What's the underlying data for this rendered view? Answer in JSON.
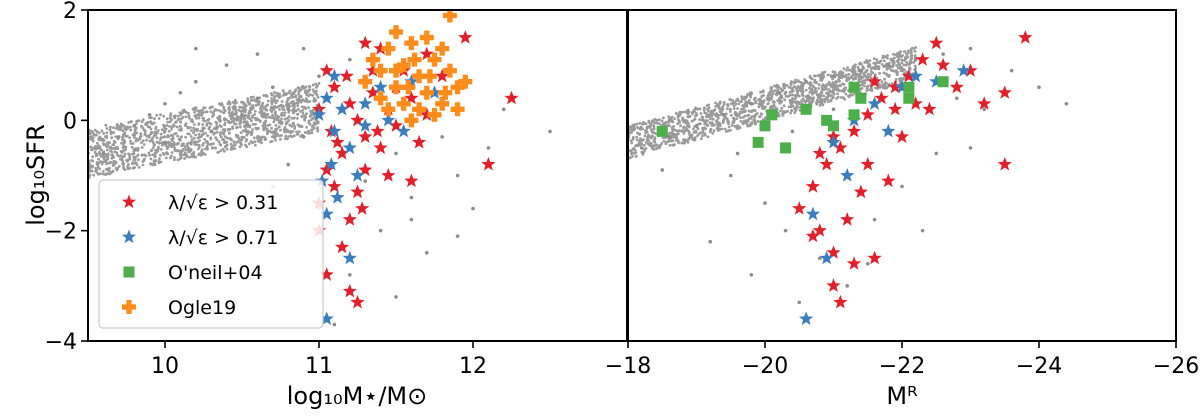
{
  "chart_data": [
    {
      "type": "scatter",
      "panel": "left",
      "xlabel": "log₁₀M⋆/M⊙",
      "ylabel": "log₁₀SFR",
      "xlim": [
        9.5,
        13.0
      ],
      "ylim": [
        -4,
        2
      ],
      "xticks": [
        10,
        11,
        12
      ],
      "xtick_labels": [
        "10",
        "11",
        "12"
      ],
      "yticks": [
        2,
        0,
        -2,
        -4
      ],
      "ytick_labels": [
        "2",
        "0",
        "−2",
        "−4"
      ],
      "legend": {
        "placement": "lower-left",
        "entries": [
          {
            "label": "λ/√ε > 0.31",
            "marker": "star",
            "color": "#e3202a"
          },
          {
            "label": "λ/√ε > 0.71",
            "marker": "star",
            "color": "#3b7ec0"
          },
          {
            "label": "O'neil+04",
            "marker": "square",
            "color": "#4daf4a"
          },
          {
            "label": "Ogle19",
            "marker": "plus",
            "color": "#ff8c1a"
          }
        ]
      },
      "series": [
        {
          "marker": "dot",
          "color": "#8c8c8c",
          "points": [
            [
              9.6,
              -0.6
            ],
            [
              9.7,
              -0.3
            ],
            [
              9.8,
              -0.1
            ],
            [
              9.9,
              0.1
            ],
            [
              10.0,
              0.3
            ],
            [
              10.1,
              0.5
            ],
            [
              10.2,
              0.7
            ],
            [
              10.0,
              -0.4
            ],
            [
              10.3,
              -0.2
            ],
            [
              10.5,
              0.1
            ],
            [
              10.6,
              0.4
            ],
            [
              10.7,
              0.6
            ],
            [
              10.8,
              0.2
            ],
            [
              10.9,
              -0.3
            ],
            [
              11.0,
              0.8
            ],
            [
              10.4,
              1.0
            ],
            [
              10.2,
              1.3
            ],
            [
              10.6,
              1.2
            ],
            [
              11.2,
              1.1
            ],
            [
              11.3,
              -1.1
            ],
            [
              11.5,
              -0.6
            ],
            [
              11.6,
              -1.4
            ],
            [
              11.8,
              -0.3
            ],
            [
              11.9,
              -1.0
            ],
            [
              12.1,
              -0.5
            ],
            [
              11.4,
              -2.0
            ],
            [
              11.7,
              -2.4
            ],
            [
              11.2,
              -2.8
            ],
            [
              11.5,
              -3.2
            ],
            [
              11.1,
              -3.7
            ],
            [
              12.0,
              -1.6
            ],
            [
              12.2,
              0.2
            ],
            [
              11.3,
              1.4
            ],
            [
              10.9,
              1.3
            ],
            [
              12.5,
              -0.2
            ],
            [
              11.6,
              -1.8
            ],
            [
              11.9,
              -2.1
            ],
            [
              10.8,
              -0.8
            ],
            [
              10.7,
              -1.2
            ],
            [
              11.0,
              -1.6
            ]
          ]
        },
        {
          "marker": "star",
          "color": "#e3202a",
          "points": [
            [
              11.05,
              0.9
            ],
            [
              11.1,
              0.6
            ],
            [
              11.2,
              0.3
            ],
            [
              11.25,
              0.0
            ],
            [
              11.3,
              -0.3
            ],
            [
              11.15,
              -0.6
            ],
            [
              11.05,
              -0.9
            ],
            [
              11.1,
              -1.2
            ],
            [
              11.0,
              -1.5
            ],
            [
              11.2,
              -1.8
            ],
            [
              11.35,
              0.5
            ],
            [
              11.45,
              0.2
            ],
            [
              11.5,
              -0.1
            ],
            [
              11.6,
              0.4
            ],
            [
              11.4,
              -0.5
            ],
            [
              11.3,
              -0.9
            ],
            [
              11.25,
              -1.3
            ],
            [
              11.15,
              -2.3
            ],
            [
              11.05,
              -2.8
            ],
            [
              11.2,
              -3.1
            ],
            [
              11.25,
              -3.3
            ],
            [
              11.55,
              0.9
            ],
            [
              11.7,
              1.2
            ],
            [
              11.8,
              0.8
            ],
            [
              11.95,
              1.5
            ],
            [
              12.25,
              0.4
            ],
            [
              12.1,
              -0.8
            ],
            [
              11.6,
              -1.1
            ],
            [
              11.45,
              -1.0
            ],
            [
              11.35,
              0.9
            ],
            [
              11.0,
              0.2
            ],
            [
              11.08,
              -0.2
            ],
            [
              11.12,
              -0.4
            ],
            [
              11.18,
              0.8
            ],
            [
              11.28,
              -1.6
            ],
            [
              11.38,
              -0.2
            ],
            [
              11.5,
              0.6
            ],
            [
              11.65,
              -0.4
            ],
            [
              11.7,
              0.1
            ],
            [
              11.4,
              1.3
            ],
            [
              11.3,
              1.4
            ],
            [
              11.0,
              -2.0
            ]
          ]
        },
        {
          "marker": "star",
          "color": "#3b7ec0",
          "points": [
            [
              11.0,
              0.1
            ],
            [
              11.05,
              0.4
            ],
            [
              11.1,
              -0.2
            ],
            [
              11.15,
              0.2
            ],
            [
              11.2,
              -0.5
            ],
            [
              11.08,
              -0.8
            ],
            [
              11.12,
              -1.4
            ],
            [
              11.25,
              -1.0
            ],
            [
              11.3,
              -0.1
            ],
            [
              11.05,
              -1.7
            ],
            [
              11.2,
              -2.5
            ],
            [
              11.4,
              0.6
            ],
            [
              11.55,
              -0.2
            ],
            [
              11.75,
              0.5
            ],
            [
              11.05,
              -3.6
            ],
            [
              11.1,
              0.8
            ],
            [
              11.3,
              0.3
            ],
            [
              11.45,
              0.0
            ],
            [
              11.6,
              0.7
            ],
            [
              11.02,
              -1.1
            ]
          ]
        },
        {
          "marker": "plus",
          "color": "#ff8c1a",
          "points": [
            [
              11.35,
              1.1
            ],
            [
              11.4,
              0.9
            ],
            [
              11.45,
              1.3
            ],
            [
              11.5,
              0.6
            ],
            [
              11.55,
              1.0
            ],
            [
              11.6,
              1.4
            ],
            [
              11.65,
              0.8
            ],
            [
              11.7,
              0.5
            ],
            [
              11.75,
              1.1
            ],
            [
              11.8,
              0.3
            ],
            [
              11.85,
              0.9
            ],
            [
              11.9,
              0.6
            ],
            [
              11.55,
              0.3
            ],
            [
              11.65,
              0.2
            ],
            [
              11.7,
              1.5
            ],
            [
              11.6,
              0.0
            ],
            [
              11.5,
              1.6
            ],
            [
              11.45,
              0.2
            ],
            [
              11.8,
              1.3
            ],
            [
              11.85,
              1.9
            ],
            [
              11.95,
              0.7
            ],
            [
              11.75,
              0.1
            ],
            [
              11.4,
              0.4
            ],
            [
              11.3,
              0.7
            ],
            [
              11.5,
              0.9
            ],
            [
              11.62,
              1.1
            ],
            [
              11.72,
              0.8
            ],
            [
              11.58,
              0.6
            ],
            [
              11.82,
              0.5
            ],
            [
              11.9,
              0.2
            ]
          ]
        }
      ]
    },
    {
      "type": "scatter",
      "panel": "right",
      "xlabel": "Mᴿ",
      "xlim": [
        -18,
        -26
      ],
      "ylim": [
        -4,
        2
      ],
      "xticks": [
        -18,
        -20,
        -22,
        -24,
        -26
      ],
      "xtick_labels": [
        "−18",
        "−20",
        "−22",
        "−24",
        "−26"
      ],
      "series": [
        {
          "marker": "dot",
          "color": "#8c8c8c",
          "points": [
            [
              -18.2,
              -0.5
            ],
            [
              -18.6,
              -0.3
            ],
            [
              -19.0,
              -0.1
            ],
            [
              -19.4,
              0.1
            ],
            [
              -19.8,
              0.3
            ],
            [
              -20.2,
              0.5
            ],
            [
              -20.6,
              0.7
            ],
            [
              -21.0,
              0.8
            ],
            [
              -21.4,
              0.9
            ],
            [
              -21.8,
              1.0
            ],
            [
              -22.2,
              1.1
            ],
            [
              -22.6,
              1.2
            ],
            [
              -23.0,
              1.3
            ],
            [
              -19.5,
              -1.0
            ],
            [
              -20.0,
              -1.5
            ],
            [
              -20.3,
              -2.0
            ],
            [
              -20.8,
              -2.5
            ],
            [
              -21.2,
              -3.0
            ],
            [
              -21.6,
              -1.8
            ],
            [
              -22.0,
              -1.2
            ],
            [
              -22.5,
              -0.6
            ],
            [
              -23.2,
              0.2
            ],
            [
              -23.6,
              0.9
            ],
            [
              -24.0,
              0.6
            ],
            [
              -24.4,
              0.3
            ],
            [
              -19.2,
              -2.2
            ],
            [
              -19.8,
              -2.8
            ],
            [
              -20.5,
              -3.3
            ],
            [
              -21.5,
              -2.6
            ],
            [
              -22.3,
              -2.0
            ],
            [
              -18.5,
              -0.9
            ],
            [
              -19.6,
              -0.6
            ],
            [
              -20.4,
              -0.2
            ],
            [
              -21.0,
              0.2
            ],
            [
              -22.8,
              0.4
            ],
            [
              -23.0,
              -0.5
            ]
          ]
        },
        {
          "marker": "star",
          "color": "#e3202a",
          "points": [
            [
              -20.5,
              -1.6
            ],
            [
              -20.7,
              -1.2
            ],
            [
              -20.9,
              -0.8
            ],
            [
              -21.1,
              -0.5
            ],
            [
              -21.3,
              -0.2
            ],
            [
              -21.5,
              0.1
            ],
            [
              -21.7,
              0.4
            ],
            [
              -21.9,
              0.6
            ],
            [
              -22.1,
              0.8
            ],
            [
              -22.3,
              1.1
            ],
            [
              -22.5,
              1.4
            ],
            [
              -20.8,
              -2.0
            ],
            [
              -21.0,
              -2.4
            ],
            [
              -21.3,
              -2.6
            ],
            [
              -21.6,
              -2.5
            ],
            [
              -21.0,
              -3.0
            ],
            [
              -21.1,
              -3.3
            ],
            [
              -21.8,
              -1.1
            ],
            [
              -22.0,
              -0.3
            ],
            [
              -21.4,
              -1.3
            ],
            [
              -20.7,
              -2.1
            ],
            [
              -21.2,
              -1.8
            ],
            [
              -22.4,
              0.2
            ],
            [
              -22.8,
              0.6
            ],
            [
              -23.0,
              0.9
            ],
            [
              -23.5,
              0.5
            ],
            [
              -23.8,
              1.5
            ],
            [
              -23.5,
              -0.8
            ],
            [
              -21.6,
              0.7
            ],
            [
              -21.9,
              0.2
            ],
            [
              -22.2,
              0.3
            ],
            [
              -21.0,
              -0.3
            ],
            [
              -20.8,
              -0.6
            ],
            [
              -21.5,
              -0.8
            ],
            [
              -22.6,
              1.0
            ],
            [
              -23.2,
              0.3
            ]
          ]
        },
        {
          "marker": "star",
          "color": "#3b7ec0",
          "points": [
            [
              -20.7,
              -1.7
            ],
            [
              -20.9,
              -2.5
            ],
            [
              -21.0,
              -0.4
            ],
            [
              -21.3,
              0.0
            ],
            [
              -21.6,
              0.3
            ],
            [
              -22.0,
              0.6
            ],
            [
              -22.2,
              0.8
            ],
            [
              -22.5,
              0.7
            ],
            [
              -22.9,
              0.9
            ],
            [
              -20.6,
              -3.6
            ],
            [
              -21.2,
              -1.0
            ],
            [
              -21.8,
              -0.2
            ]
          ]
        },
        {
          "marker": "square",
          "color": "#4daf4a",
          "points": [
            [
              -18.5,
              -0.2
            ],
            [
              -19.9,
              -0.4
            ],
            [
              -20.0,
              -0.1
            ],
            [
              -20.3,
              -0.5
            ],
            [
              -20.1,
              0.1
            ],
            [
              -20.6,
              0.2
            ],
            [
              -20.9,
              0.0
            ],
            [
              -21.0,
              -0.1
            ],
            [
              -21.3,
              0.1
            ],
            [
              -21.4,
              0.4
            ],
            [
              -21.3,
              0.6
            ],
            [
              -22.1,
              0.6
            ],
            [
              -22.1,
              0.4
            ],
            [
              -22.6,
              0.7
            ]
          ]
        }
      ]
    }
  ]
}
